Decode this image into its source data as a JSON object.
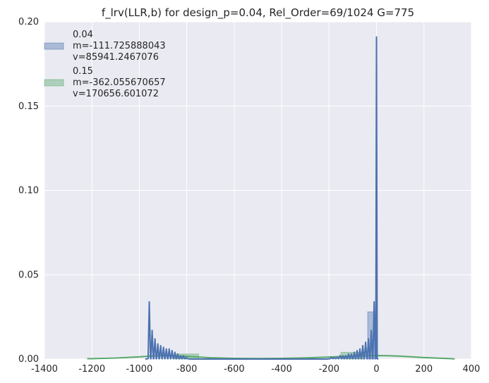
{
  "chart_data": {
    "type": "area",
    "title": "f_lrv(LLR,b) for design_p=0.04, Rel_Order=69/1024 G=775",
    "xlabel": "",
    "ylabel": "",
    "xlim": [
      -1400,
      400
    ],
    "ylim": [
      0,
      0.2
    ],
    "x_ticks": [
      "-1400",
      "-1200",
      "-1000",
      "-800",
      "-600",
      "-400",
      "-200",
      "0",
      "200",
      "400"
    ],
    "y_ticks": [
      "0.00",
      "0.05",
      "0.10",
      "0.15",
      "0.20"
    ],
    "grid": true,
    "legend_position": "top-left",
    "series": [
      {
        "name": "0.04",
        "legend_lines": [
          "0.04",
          " m=-111.725888043",
          " v=85941.2467076"
        ],
        "color": "#4c72b0",
        "kde_peaks": [
          {
            "x": -958,
            "y": 0.034
          },
          {
            "x": -946,
            "y": 0.017
          },
          {
            "x": -934,
            "y": 0.012
          },
          {
            "x": -922,
            "y": 0.009
          },
          {
            "x": -910,
            "y": 0.008
          },
          {
            "x": -898,
            "y": 0.007
          },
          {
            "x": -886,
            "y": 0.006
          },
          {
            "x": -874,
            "y": 0.006
          },
          {
            "x": -862,
            "y": 0.005
          },
          {
            "x": -850,
            "y": 0.004
          },
          {
            "x": -838,
            "y": 0.003
          },
          {
            "x": -826,
            "y": 0.002
          },
          {
            "x": -814,
            "y": 0.002
          },
          {
            "x": -802,
            "y": 0.001
          },
          {
            "x": -190,
            "y": 0.001
          },
          {
            "x": -178,
            "y": 0.001
          },
          {
            "x": -166,
            "y": 0.001
          },
          {
            "x": -154,
            "y": 0.002
          },
          {
            "x": -142,
            "y": 0.002
          },
          {
            "x": -130,
            "y": 0.002
          },
          {
            "x": -118,
            "y": 0.003
          },
          {
            "x": -106,
            "y": 0.003
          },
          {
            "x": -94,
            "y": 0.004
          },
          {
            "x": -82,
            "y": 0.005
          },
          {
            "x": -70,
            "y": 0.006
          },
          {
            "x": -58,
            "y": 0.008
          },
          {
            "x": -46,
            "y": 0.01
          },
          {
            "x": -34,
            "y": 0.012
          },
          {
            "x": -22,
            "y": 0.017
          },
          {
            "x": -10,
            "y": 0.034
          },
          {
            "x": 0,
            "y": 0.191
          }
        ],
        "hist_bars": [
          {
            "x0": -37,
            "x1": -3,
            "y": 0.028
          }
        ]
      },
      {
        "name": "0.15",
        "legend_lines": [
          "0.15",
          " m=-362.055670657",
          " v=170656.601072"
        ],
        "color": "#55a868",
        "kde_points": [
          {
            "x": -1220,
            "y": 0.0002
          },
          {
            "x": -1100,
            "y": 0.0006
          },
          {
            "x": -1000,
            "y": 0.0013
          },
          {
            "x": -950,
            "y": 0.0018
          },
          {
            "x": -900,
            "y": 0.002
          },
          {
            "x": -850,
            "y": 0.0019
          },
          {
            "x": -800,
            "y": 0.0016
          },
          {
            "x": -700,
            "y": 0.0008
          },
          {
            "x": -600,
            "y": 0.0004
          },
          {
            "x": -500,
            "y": 0.0003
          },
          {
            "x": -400,
            "y": 0.0004
          },
          {
            "x": -300,
            "y": 0.0007
          },
          {
            "x": -200,
            "y": 0.0012
          },
          {
            "x": -100,
            "y": 0.0018
          },
          {
            "x": 0,
            "y": 0.0021
          },
          {
            "x": 50,
            "y": 0.002
          },
          {
            "x": 100,
            "y": 0.0017
          },
          {
            "x": 200,
            "y": 0.0009
          },
          {
            "x": 300,
            "y": 0.0003
          },
          {
            "x": 330,
            "y": 0.0001
          }
        ],
        "hist_bars": [
          {
            "x0": -850,
            "x1": -750,
            "y": 0.003
          },
          {
            "x0": -150,
            "x1": -50,
            "y": 0.004
          }
        ]
      }
    ]
  }
}
